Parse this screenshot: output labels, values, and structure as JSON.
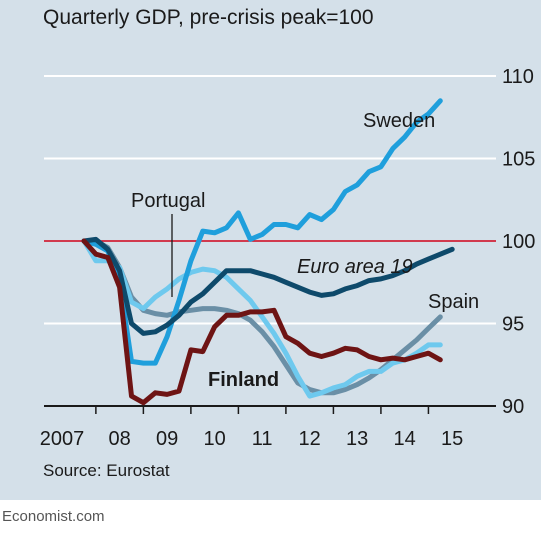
{
  "colors": {
    "background": "#d4e0e9",
    "grid": "#ffffff",
    "reference": "#d0021b",
    "Sweden": "#1f9fdc",
    "Portugal": "#6ec9ee",
    "Euro area 19": "#0e4a6b",
    "Spain": "#6a8fa6",
    "Finland": "#6e1414"
  },
  "footer": {
    "brand": "Economist.com"
  },
  "chart_data": {
    "type": "line",
    "title": "Quarterly GDP, pre-crisis peak=100",
    "source": "Source: Eurostat",
    "x_tick_labels": [
      "2007",
      "08",
      "09",
      "10",
      "11",
      "12",
      "13",
      "14",
      "15"
    ],
    "y_ticks": [
      90,
      95,
      100,
      105,
      110
    ],
    "ylim": [
      90,
      111
    ],
    "xlim": [
      2007.75,
      2015.875
    ],
    "reference_line": 100,
    "y_axis_side": "right",
    "grid": true,
    "series": [
      {
        "name": "Sweden",
        "x": [
          2007.75,
          2008.0,
          2008.25,
          2008.5,
          2008.75,
          2009.0,
          2009.25,
          2009.5,
          2009.75,
          2010.0,
          2010.25,
          2010.5,
          2010.75,
          2011.0,
          2011.25,
          2011.5,
          2011.75,
          2012.0,
          2012.25,
          2012.5,
          2012.75,
          2013.0,
          2013.25,
          2013.5,
          2013.75,
          2014.0,
          2014.25,
          2014.5,
          2014.75,
          2015.0,
          2015.25,
          2015.5
        ],
        "y": [
          100.0,
          99.8,
          99.4,
          97.6,
          92.7,
          92.6,
          92.6,
          94.2,
          96.4,
          98.8,
          100.6,
          100.5,
          100.8,
          101.7,
          100.1,
          100.4,
          101.0,
          101.0,
          100.8,
          101.6,
          101.3,
          101.9,
          103.0,
          103.4,
          104.2,
          104.5,
          105.6,
          106.3,
          107.2,
          107.7,
          108.5,
          null
        ]
      },
      {
        "name": "Portugal",
        "x": [
          2007.75,
          2008.0,
          2008.25,
          2008.5,
          2008.75,
          2009.0,
          2009.25,
          2009.5,
          2009.75,
          2010.0,
          2010.25,
          2010.5,
          2010.75,
          2011.0,
          2011.25,
          2011.5,
          2011.75,
          2012.0,
          2012.25,
          2012.5,
          2012.75,
          2013.0,
          2013.25,
          2013.5,
          2013.75,
          2014.0,
          2014.25,
          2014.5,
          2014.75,
          2015.0,
          2015.25,
          2015.5
        ],
        "y": [
          100.0,
          98.8,
          98.8,
          98.4,
          96.3,
          95.9,
          96.6,
          97.1,
          97.7,
          98.1,
          98.3,
          98.2,
          97.8,
          97.1,
          96.4,
          95.4,
          94.4,
          93.2,
          91.8,
          90.6,
          90.8,
          91.1,
          91.3,
          91.8,
          92.1,
          92.1,
          92.6,
          92.8,
          93.2,
          93.7,
          93.7,
          null
        ]
      },
      {
        "name": "Euro area 19",
        "x": [
          2007.75,
          2008.0,
          2008.25,
          2008.5,
          2008.75,
          2009.0,
          2009.25,
          2009.5,
          2009.75,
          2010.0,
          2010.25,
          2010.5,
          2010.75,
          2011.0,
          2011.25,
          2011.5,
          2011.75,
          2012.0,
          2012.25,
          2012.5,
          2012.75,
          2013.0,
          2013.25,
          2013.5,
          2013.75,
          2014.0,
          2014.25,
          2014.5,
          2014.75,
          2015.0,
          2015.25,
          2015.5
        ],
        "y": [
          100.0,
          100.1,
          99.5,
          98.2,
          95.0,
          94.4,
          94.5,
          94.9,
          95.5,
          96.3,
          96.8,
          97.5,
          98.2,
          98.2,
          98.2,
          98.0,
          97.8,
          97.5,
          97.2,
          96.9,
          96.7,
          96.8,
          97.1,
          97.3,
          97.6,
          97.7,
          97.9,
          98.2,
          98.6,
          98.9,
          99.2,
          99.5
        ]
      },
      {
        "name": "Spain",
        "x": [
          2007.75,
          2008.0,
          2008.25,
          2008.5,
          2008.75,
          2009.0,
          2009.25,
          2009.5,
          2009.75,
          2010.0,
          2010.25,
          2010.5,
          2010.75,
          2011.0,
          2011.25,
          2011.5,
          2011.75,
          2012.0,
          2012.25,
          2012.5,
          2012.75,
          2013.0,
          2013.25,
          2013.5,
          2013.75,
          2014.0,
          2014.25,
          2014.5,
          2014.75,
          2015.0,
          2015.25,
          2015.5
        ],
        "y": [
          100.0,
          100.0,
          99.6,
          98.4,
          96.6,
          95.8,
          95.6,
          95.5,
          95.7,
          95.8,
          95.9,
          95.9,
          95.8,
          95.6,
          95.2,
          94.5,
          93.6,
          92.5,
          91.4,
          91.0,
          90.8,
          90.8,
          91.0,
          91.3,
          91.7,
          92.2,
          92.8,
          93.4,
          94.0,
          94.7,
          95.4,
          null
        ]
      },
      {
        "name": "Finland",
        "x": [
          2007.75,
          2008.0,
          2008.25,
          2008.5,
          2008.75,
          2009.0,
          2009.25,
          2009.5,
          2009.75,
          2010.0,
          2010.25,
          2010.5,
          2010.75,
          2011.0,
          2011.25,
          2011.5,
          2011.75,
          2012.0,
          2012.25,
          2012.5,
          2012.75,
          2013.0,
          2013.25,
          2013.5,
          2013.75,
          2014.0,
          2014.25,
          2014.5,
          2014.75,
          2015.0,
          2015.25,
          2015.5
        ],
        "y": [
          100.0,
          99.2,
          99.0,
          97.2,
          90.6,
          90.2,
          90.8,
          90.7,
          90.9,
          93.4,
          93.3,
          94.8,
          95.5,
          95.5,
          95.7,
          95.7,
          95.8,
          94.2,
          93.8,
          93.2,
          93.0,
          93.2,
          93.5,
          93.4,
          93.0,
          92.8,
          92.9,
          92.8,
          93.0,
          93.2,
          92.8,
          null
        ]
      }
    ],
    "annotations": [
      {
        "series": "Sweden",
        "text": "Sweden"
      },
      {
        "series": "Portugal",
        "text": "Portugal"
      },
      {
        "series": "Euro area 19",
        "text": "Euro area 19"
      },
      {
        "series": "Spain",
        "text": "Spain"
      },
      {
        "series": "Finland",
        "text": "Finland"
      }
    ]
  }
}
